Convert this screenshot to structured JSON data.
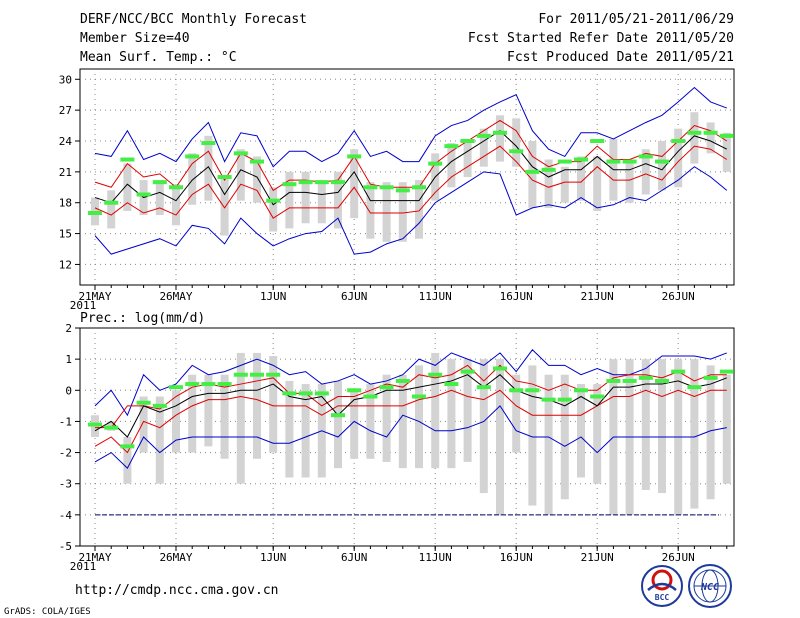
{
  "header": {
    "title": "DERF/NCC/BCC Monthly Forecast",
    "member_size": "Member Size=40",
    "variable": "Mean Surf. Temp.: °C",
    "period": "For 2011/05/21-2011/06/29",
    "started": "Fcst Started Refer Date 2011/05/20",
    "produced": "Fcst Produced Date 2011/05/21"
  },
  "footer": {
    "url": "http://cmdp.ncc.cma.gov.cn",
    "credit": "GrADS: COLA/IGES",
    "logo_bcc": "BCC",
    "logo_ncc": "NCC"
  },
  "colors": {
    "box": "#d3d3d3",
    "median": "#000000",
    "quartile": "#e00000",
    "extreme": "#0000cc",
    "mean": "#44ee44",
    "grid": "#888888",
    "threshold": "#000066"
  },
  "chart_data": [
    {
      "type": "box",
      "title": "Mean Surf. Temp.: °C",
      "ylim": [
        10,
        31
      ],
      "yticks": [
        12,
        15,
        18,
        21,
        24,
        27,
        30
      ],
      "xticks": [
        {
          "day": 0,
          "label": "21MAY",
          "sub": "2011"
        },
        {
          "day": 5,
          "label": "26MAY"
        },
        {
          "day": 11,
          "label": "1JUN"
        },
        {
          "day": 16,
          "label": "6JUN"
        },
        {
          "day": 21,
          "label": "11JUN"
        },
        {
          "day": 26,
          "label": "16JUN"
        },
        {
          "day": 31,
          "label": "21JUN"
        },
        {
          "day": 36,
          "label": "26JUN"
        }
      ],
      "days": 40,
      "series": {
        "max": [
          22.8,
          22.5,
          25.0,
          22.2,
          22.8,
          22.0,
          24.2,
          25.8,
          22.0,
          24.8,
          24.5,
          21.5,
          23.0,
          23.0,
          22.0,
          22.8,
          25.0,
          22.5,
          23.0,
          22.0,
          22.0,
          24.5,
          25.5,
          26.0,
          27.0,
          27.8,
          28.5,
          25.0,
          23.2,
          22.5,
          24.8,
          24.8,
          24.2,
          25.0,
          25.8,
          26.5,
          27.8,
          29.2,
          27.8,
          27.2
        ],
        "box_top": [
          18.5,
          19.2,
          21.8,
          20.2,
          20.2,
          19.8,
          22.8,
          24.5,
          20.5,
          23.2,
          22.5,
          19.5,
          21.0,
          21.0,
          20.2,
          21.0,
          23.2,
          20.0,
          20.0,
          20.0,
          20.2,
          22.8,
          23.8,
          24.2,
          25.2,
          26.5,
          26.2,
          24.0,
          22.2,
          21.5,
          22.5,
          22.5,
          24.2,
          22.2,
          23.2,
          24.0,
          25.2,
          26.8,
          25.8,
          24.8
        ],
        "q75": [
          20.0,
          19.5,
          21.8,
          20.5,
          20.8,
          19.5,
          21.8,
          23.0,
          20.2,
          22.8,
          22.0,
          19.2,
          20.2,
          20.2,
          20.0,
          20.2,
          22.5,
          19.8,
          19.5,
          19.5,
          19.5,
          21.8,
          23.0,
          24.0,
          25.0,
          26.0,
          25.0,
          22.5,
          21.5,
          22.0,
          22.0,
          23.5,
          22.2,
          22.2,
          22.8,
          22.5,
          24.0,
          25.5,
          25.0,
          24.0
        ],
        "median": [
          18.5,
          18.0,
          19.8,
          18.5,
          19.0,
          18.2,
          20.2,
          21.5,
          18.8,
          21.2,
          20.5,
          17.8,
          19.0,
          19.0,
          18.8,
          19.0,
          21.0,
          18.2,
          18.2,
          18.2,
          18.2,
          20.5,
          22.0,
          23.0,
          24.0,
          25.0,
          23.5,
          21.5,
          20.5,
          21.2,
          21.2,
          22.5,
          21.2,
          21.2,
          21.8,
          21.2,
          23.0,
          24.5,
          24.0,
          23.2
        ],
        "q25": [
          17.5,
          16.8,
          18.0,
          17.0,
          17.5,
          16.8,
          18.8,
          19.8,
          17.5,
          19.8,
          19.2,
          16.5,
          17.5,
          17.5,
          17.5,
          17.5,
          19.5,
          17.0,
          17.0,
          17.0,
          17.2,
          19.0,
          20.5,
          21.5,
          22.5,
          23.5,
          22.0,
          20.2,
          19.5,
          20.0,
          20.0,
          21.5,
          20.2,
          20.2,
          20.8,
          20.2,
          22.0,
          23.5,
          23.2,
          22.2
        ],
        "box_bottom": [
          15.8,
          15.5,
          17.2,
          16.8,
          16.8,
          15.8,
          17.8,
          18.2,
          14.8,
          18.2,
          18.0,
          15.2,
          15.5,
          16.0,
          16.0,
          15.5,
          16.5,
          14.5,
          14.2,
          14.2,
          14.5,
          18.2,
          19.5,
          20.5,
          21.5,
          22.0,
          21.5,
          17.5,
          17.5,
          18.0,
          18.2,
          17.2,
          18.2,
          18.0,
          18.8,
          19.2,
          19.5,
          21.8,
          22.8,
          21.0
        ],
        "min": [
          14.8,
          13.0,
          13.5,
          14.0,
          14.5,
          13.8,
          15.8,
          15.5,
          14.0,
          16.5,
          15.0,
          13.8,
          14.5,
          15.0,
          15.2,
          16.5,
          13.0,
          13.2,
          14.0,
          14.5,
          16.0,
          18.0,
          19.0,
          20.0,
          21.0,
          20.8,
          16.8,
          17.5,
          17.8,
          17.5,
          18.5,
          17.5,
          17.8,
          18.5,
          18.2,
          19.2,
          20.2,
          21.5,
          20.5,
          19.2
        ],
        "mean": [
          17.0,
          18.0,
          22.2,
          18.8,
          20.0,
          19.5,
          22.5,
          23.8,
          20.5,
          22.8,
          22.0,
          18.2,
          19.8,
          20.0,
          20.0,
          20.0,
          22.5,
          19.5,
          19.5,
          19.2,
          19.5,
          21.8,
          23.5,
          24.0,
          24.5,
          24.8,
          23.0,
          21.0,
          21.2,
          22.0,
          22.2,
          24.0,
          22.0,
          22.0,
          22.5,
          22.0,
          24.0,
          24.8,
          24.8,
          24.5
        ]
      }
    },
    {
      "type": "box",
      "title": "Prec.: log(mm/d)",
      "ylim": [
        -5,
        2
      ],
      "yticks": [
        -5,
        -4,
        -3,
        -2,
        -1,
        0,
        1,
        2
      ],
      "threshold": -4,
      "xticks": [
        {
          "day": 0,
          "label": "21MAY",
          "sub": "2011"
        },
        {
          "day": 5,
          "label": "26MAY"
        },
        {
          "day": 11,
          "label": "1JUN"
        },
        {
          "day": 16,
          "label": "6JUN"
        },
        {
          "day": 21,
          "label": "11JUN"
        },
        {
          "day": 26,
          "label": "16JUN"
        },
        {
          "day": 31,
          "label": "21JUN"
        },
        {
          "day": 36,
          "label": "26JUN"
        }
      ],
      "days": 40,
      "series": {
        "max": [
          -0.5,
          0.0,
          -0.8,
          0.5,
          0.0,
          0.2,
          0.8,
          0.5,
          0.6,
          0.8,
          1.0,
          0.8,
          0.5,
          0.6,
          0.2,
          0.3,
          0.5,
          0.2,
          0.3,
          0.5,
          1.0,
          0.8,
          1.2,
          1.0,
          0.8,
          1.2,
          0.6,
          1.3,
          0.8,
          0.8,
          0.5,
          0.7,
          0.5,
          0.5,
          0.7,
          1.1,
          1.1,
          1.1,
          1.0,
          1.2
        ],
        "box_top": [
          -0.8,
          -1.0,
          -1.5,
          -0.2,
          -0.2,
          0.0,
          0.5,
          0.5,
          0.5,
          1.2,
          1.2,
          1.1,
          0.3,
          0.2,
          0.2,
          0.3,
          0.0,
          0.2,
          0.5,
          0.5,
          0.8,
          1.2,
          1.0,
          1.0,
          1.0,
          1.0,
          0.5,
          0.8,
          0.5,
          0.5,
          0.2,
          0.2,
          1.0,
          1.0,
          1.0,
          1.0,
          1.0,
          1.0,
          0.8,
          0.5
        ],
        "q75": [
          -1.2,
          -1.2,
          -0.5,
          -0.5,
          -0.6,
          -0.2,
          0.1,
          0.2,
          0.1,
          0.2,
          0.3,
          0.4,
          -0.1,
          -0.1,
          -0.5,
          -0.2,
          -0.2,
          0.0,
          0.2,
          0.1,
          0.5,
          0.4,
          0.5,
          0.8,
          0.3,
          0.8,
          0.3,
          0.2,
          0.0,
          0.2,
          0.0,
          0.0,
          0.4,
          0.5,
          0.5,
          0.4,
          0.6,
          0.3,
          0.5,
          0.5
        ],
        "median": [
          -1.3,
          -1.0,
          -1.5,
          -0.5,
          -0.7,
          -0.5,
          -0.2,
          -0.1,
          -0.1,
          0.0,
          0.0,
          0.2,
          -0.2,
          -0.3,
          -0.2,
          -0.8,
          -0.3,
          -0.2,
          0.0,
          0.0,
          0.1,
          0.2,
          0.3,
          0.5,
          0.1,
          0.5,
          0.0,
          -0.2,
          -0.3,
          -0.5,
          -0.2,
          -0.5,
          0.1,
          0.1,
          0.2,
          0.2,
          0.3,
          0.1,
          0.2,
          0.4
        ],
        "q25": [
          -1.8,
          -1.5,
          -2.0,
          -1.0,
          -1.2,
          -0.8,
          -0.5,
          -0.3,
          -0.3,
          -0.2,
          -0.3,
          -0.5,
          -0.5,
          -0.5,
          -0.8,
          -0.5,
          -0.5,
          -0.5,
          -0.5,
          -0.5,
          -0.3,
          -0.2,
          0.0,
          -0.2,
          -0.3,
          0.0,
          -0.5,
          -0.8,
          -0.8,
          -0.8,
          -0.8,
          -0.5,
          -0.2,
          -0.2,
          0.0,
          -0.2,
          0.0,
          -0.2,
          0.0,
          0.0
        ],
        "box_bottom": [
          -1.5,
          -1.3,
          -3.0,
          -2.0,
          -3.0,
          -2.0,
          -2.0,
          -1.8,
          -2.2,
          -3.0,
          -2.2,
          -2.0,
          -2.8,
          -2.8,
          -2.8,
          -2.5,
          -2.2,
          -2.2,
          -2.3,
          -2.5,
          -2.5,
          -2.5,
          -2.5,
          -2.3,
          -3.3,
          -4.0,
          -2.0,
          -3.7,
          -4.0,
          -3.5,
          -2.8,
          -3.0,
          -4.0,
          -4.0,
          -3.2,
          -3.3,
          -4.0,
          -3.8,
          -3.5,
          -3.0
        ],
        "min": [
          -2.3,
          -2.0,
          -2.5,
          -1.5,
          -2.0,
          -1.6,
          -1.5,
          -1.5,
          -1.5,
          -1.5,
          -1.5,
          -1.7,
          -1.7,
          -1.5,
          -1.3,
          -1.5,
          -1.0,
          -1.3,
          -1.5,
          -0.8,
          -1.0,
          -1.3,
          -1.3,
          -1.2,
          -1.0,
          -0.5,
          -1.3,
          -1.5,
          -1.5,
          -1.8,
          -1.5,
          -2.0,
          -1.5,
          -1.5,
          -1.5,
          -1.5,
          -1.5,
          -1.5,
          -1.3,
          -1.2
        ],
        "mean": [
          -1.1,
          -1.2,
          -1.8,
          -0.4,
          -0.5,
          0.1,
          0.2,
          0.2,
          0.2,
          0.5,
          0.5,
          0.5,
          -0.1,
          -0.1,
          -0.1,
          -0.8,
          0.0,
          -0.2,
          0.1,
          0.3,
          -0.2,
          0.5,
          0.2,
          0.6,
          0.1,
          0.7,
          0.0,
          0.0,
          -0.3,
          -0.3,
          0.0,
          -0.2,
          0.3,
          0.3,
          0.4,
          0.3,
          0.6,
          0.1,
          0.4,
          0.6
        ]
      }
    }
  ]
}
